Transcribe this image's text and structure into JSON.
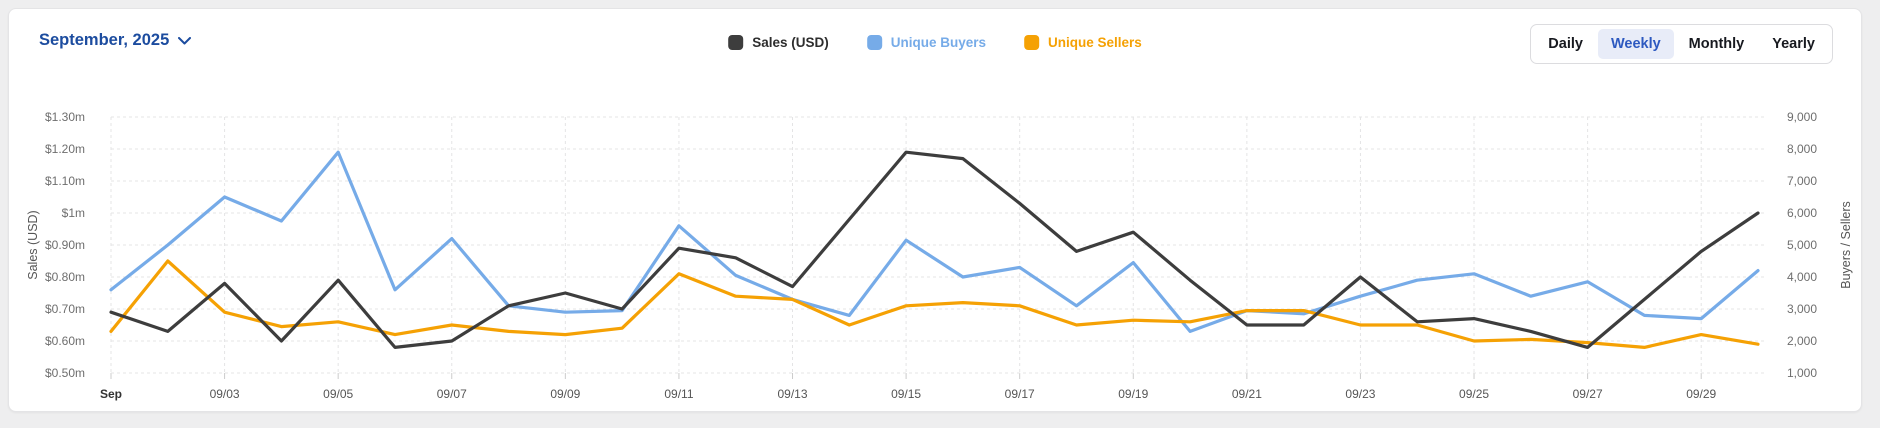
{
  "header": {
    "date_selector": "September, 2025",
    "legend": [
      {
        "label": "Sales (USD)",
        "swatch_color": "#3d3d3d",
        "text_color": "#2d2d2d"
      },
      {
        "label": "Unique Buyers",
        "swatch_color": "#76abe8",
        "text_color": "#76abe8"
      },
      {
        "label": "Unique Sellers",
        "swatch_color": "#f5a104",
        "text_color": "#f5a104"
      }
    ],
    "range_tabs": [
      {
        "label": "Daily",
        "active": false
      },
      {
        "label": "Weekly",
        "active": true
      },
      {
        "label": "Monthly",
        "active": false
      },
      {
        "label": "Yearly",
        "active": false
      }
    ],
    "active_tab_colors": {
      "text": "#2d59c0",
      "background": "#e8ecf8"
    }
  },
  "chart_data": {
    "type": "line",
    "grid": true,
    "legend_position": "top-center",
    "x_ticks": [
      {
        "label": "Sep",
        "day": 1,
        "bold": true
      },
      {
        "label": "09/03",
        "day": 3
      },
      {
        "label": "09/05",
        "day": 5
      },
      {
        "label": "09/07",
        "day": 7
      },
      {
        "label": "09/09",
        "day": 9
      },
      {
        "label": "09/11",
        "day": 11
      },
      {
        "label": "09/13",
        "day": 13
      },
      {
        "label": "09/15",
        "day": 15
      },
      {
        "label": "09/17",
        "day": 17
      },
      {
        "label": "09/19",
        "day": 19
      },
      {
        "label": "09/21",
        "day": 21
      },
      {
        "label": "09/23",
        "day": 23
      },
      {
        "label": "09/25",
        "day": 25
      },
      {
        "label": "09/27",
        "day": 27
      },
      {
        "label": "09/29",
        "day": 29
      }
    ],
    "days": [
      1,
      2,
      3,
      4,
      5,
      6,
      7,
      8,
      9,
      10,
      11,
      12,
      13,
      14,
      15,
      16,
      17,
      18,
      19,
      20,
      21,
      22,
      23,
      24,
      25,
      26,
      27,
      28,
      29,
      30
    ],
    "left_axis": {
      "label": "Sales (USD)",
      "unit": "million USD",
      "ticks": [
        "$1.30m",
        "$1.20m",
        "$1.10m",
        "$1m",
        "$0.90m",
        "$0.80m",
        "$0.70m",
        "$0.60m",
        "$0.50m"
      ],
      "min": 0.5,
      "max": 1.3
    },
    "right_axis": {
      "label": "Buyers / Sellers",
      "ticks": [
        "9,000",
        "8,000",
        "7,000",
        "6,000",
        "5,000",
        "4,000",
        "3,000",
        "2,000",
        "1,000"
      ],
      "min": 1000,
      "max": 9000
    },
    "series": [
      {
        "name": "Sales (USD)",
        "axis": "left",
        "color": "#3d3d3d",
        "values": [
          0.69,
          0.63,
          0.78,
          0.6,
          0.79,
          0.58,
          0.6,
          0.71,
          0.75,
          0.7,
          0.89,
          0.86,
          0.77,
          0.98,
          1.19,
          1.17,
          1.03,
          0.88,
          0.94,
          0.79,
          0.65,
          0.65,
          0.8,
          0.66,
          0.67,
          0.63,
          0.58,
          0.73,
          0.88,
          1.0
        ]
      },
      {
        "name": "Unique Buyers",
        "axis": "right",
        "color": "#76abe8",
        "values": [
          3600,
          5000,
          6500,
          5750,
          7900,
          3600,
          5200,
          3100,
          2900,
          2950,
          5600,
          4050,
          3300,
          2800,
          5150,
          4000,
          4300,
          3100,
          4450,
          2300,
          2950,
          2850,
          3400,
          3900,
          4100,
          3400,
          3850,
          2800,
          2700,
          4200
        ]
      },
      {
        "name": "Unique Sellers",
        "axis": "right",
        "color": "#f5a104",
        "values": [
          2300,
          4500,
          2900,
          2450,
          2600,
          2200,
          2500,
          2300,
          2200,
          2400,
          4100,
          3400,
          3300,
          2500,
          3100,
          3200,
          3100,
          2500,
          2650,
          2600,
          2950,
          2950,
          2500,
          2500,
          2000,
          2050,
          1950,
          1800,
          2200,
          1900
        ]
      }
    ]
  }
}
